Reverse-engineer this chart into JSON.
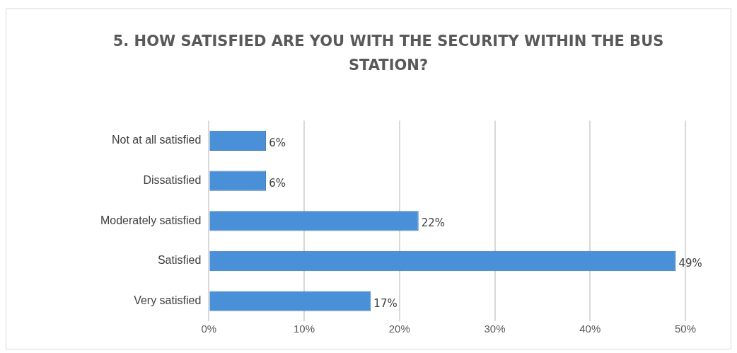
{
  "chart_data": {
    "type": "bar",
    "orientation": "horizontal",
    "title": "5. HOW SATISFIED ARE YOU WITH THE SECURITY WITHIN THE BUS STATION?",
    "categories": [
      "Not at all satisfied",
      "Dissatisfied",
      "Moderately satisfied",
      "Satisfied",
      "Very satisfied"
    ],
    "values": [
      6,
      6,
      22,
      49,
      17
    ],
    "value_labels": [
      "6%",
      "6%",
      "22%",
      "49%",
      "17%"
    ],
    "color": "#4a90d9",
    "xlim": [
      0,
      50
    ],
    "xticks": [
      {
        "value": 0,
        "label": "0%"
      },
      {
        "value": 10,
        "label": "10%"
      },
      {
        "value": 20,
        "label": "20%"
      },
      {
        "value": 30,
        "label": "30%"
      },
      {
        "value": 40,
        "label": "40%"
      },
      {
        "value": 50,
        "label": "50%"
      }
    ],
    "grid": "x",
    "legend": false
  }
}
